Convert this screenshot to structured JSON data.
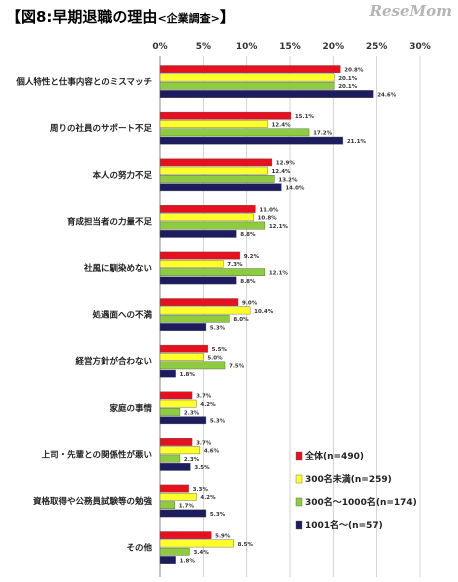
{
  "title": "【図8:早期退職の理由",
  "subtitle": "<企業調査>",
  "title_close": "】",
  "watermark": "ReseMom",
  "colors": {
    "s0": "#e8101e",
    "s1": "#ffff2a",
    "s2": "#8ccc3e",
    "s3": "#1c1c5e"
  },
  "chart_data": {
    "type": "bar",
    "orientation": "horizontal",
    "xlim": [
      0,
      30
    ],
    "x_ticks": [
      "0%",
      "5%",
      "10%",
      "15%",
      "20%",
      "25%",
      "30%"
    ],
    "grid": true,
    "legend_position": "bottom-right",
    "categories": [
      "個人特性と仕事内容とのミスマッチ",
      "周りの社員のサポート不足",
      "本人の努力不足",
      "育成担当者の力量不足",
      "社風に馴染めない",
      "処遇面への不満",
      "経営方針が合わない",
      "家庭の事情",
      "上司・先輩との関係性が悪い",
      "資格取得や公務員試験等の勉強",
      "その他"
    ],
    "series": [
      {
        "name": "全体(n=490)",
        "values": [
          20.8,
          15.1,
          12.9,
          11.0,
          9.2,
          9.0,
          5.5,
          3.7,
          3.7,
          3.3,
          5.9
        ],
        "labels": [
          "20.8%",
          "15.1%",
          "12.9%",
          "11.0%",
          "9.2%",
          "9.0%",
          "5.5%",
          "3.7%",
          "3.7%",
          "3.3%",
          "5.9%"
        ]
      },
      {
        "name": "300名未満(n=259)",
        "values": [
          20.1,
          12.4,
          12.4,
          10.8,
          7.3,
          10.4,
          5.0,
          4.2,
          4.6,
          4.2,
          8.5
        ],
        "labels": [
          "20.1%",
          "12.4%",
          "12.4%",
          "10.8%",
          "7.3%",
          "10.4%",
          "5.0%",
          "4.2%",
          "4.6%",
          "4.2%",
          "8.5%"
        ]
      },
      {
        "name": "300名～1000名(n=174)",
        "values": [
          20.1,
          17.2,
          13.2,
          12.1,
          12.1,
          8.0,
          7.5,
          2.3,
          2.3,
          1.7,
          3.4
        ],
        "labels": [
          "20.1%",
          "17.2%",
          "13.2%",
          "12.1%",
          "12.1%",
          "8.0%",
          "7.5%",
          "2.3%",
          "2.3%",
          "1.7%",
          "3.4%"
        ]
      },
      {
        "name": "1001名～(n=57)",
        "values": [
          24.6,
          21.1,
          14.0,
          8.8,
          8.8,
          5.3,
          1.8,
          5.3,
          3.5,
          5.3,
          1.8
        ],
        "labels": [
          "24.6%",
          "21.1%",
          "14.0%",
          "8.8%",
          "8.8%",
          "5.3%",
          "1.8%",
          "5.3%",
          "3.5%",
          "5.3%",
          "1.8%"
        ]
      }
    ]
  }
}
